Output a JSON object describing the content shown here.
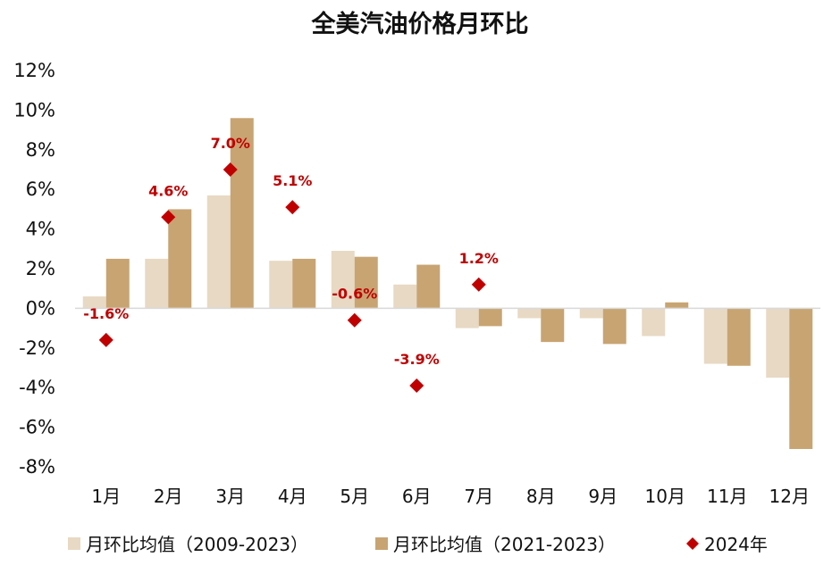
{
  "chart_data": {
    "type": "bar",
    "title": "全美汽油价格月环比",
    "categories": [
      "1月",
      "2月",
      "3月",
      "4月",
      "5月",
      "6月",
      "7月",
      "8月",
      "9月",
      "10月",
      "11月",
      "12月"
    ],
    "ylim": [
      -8,
      12
    ],
    "yticks": [
      "12%",
      "10%",
      "8%",
      "6%",
      "4%",
      "2%",
      "0%",
      "-2%",
      "-4%",
      "-6%",
      "-8%"
    ],
    "ytick_values": [
      12,
      10,
      8,
      6,
      4,
      2,
      0,
      -2,
      -4,
      -6,
      -8
    ],
    "grid": false,
    "legend_position": "bottom",
    "series": [
      {
        "name": "月环比均值（2009-2023）",
        "kind": "bar",
        "color": "#e8d9c4",
        "values": [
          0.6,
          2.5,
          5.7,
          2.4,
          2.9,
          1.2,
          -1.0,
          -0.5,
          -0.5,
          -1.4,
          -2.8,
          -3.5
        ]
      },
      {
        "name": "月环比均值（2021-2023）",
        "kind": "bar",
        "color": "#c8a472",
        "values": [
          2.5,
          5.0,
          9.6,
          2.5,
          2.6,
          2.2,
          -0.9,
          -1.7,
          -1.8,
          0.3,
          -2.9,
          -7.1
        ]
      },
      {
        "name": "2024年",
        "kind": "marker",
        "color": "#c00000",
        "values": [
          -1.6,
          4.6,
          7.0,
          5.1,
          -0.6,
          -3.9,
          1.2,
          null,
          null,
          null,
          null,
          null
        ],
        "labels": [
          "-1.6%",
          "4.6%",
          "7.0%",
          "5.1%",
          "-0.6%",
          "-3.9%",
          "1.2%",
          null,
          null,
          null,
          null,
          null
        ]
      }
    ]
  }
}
